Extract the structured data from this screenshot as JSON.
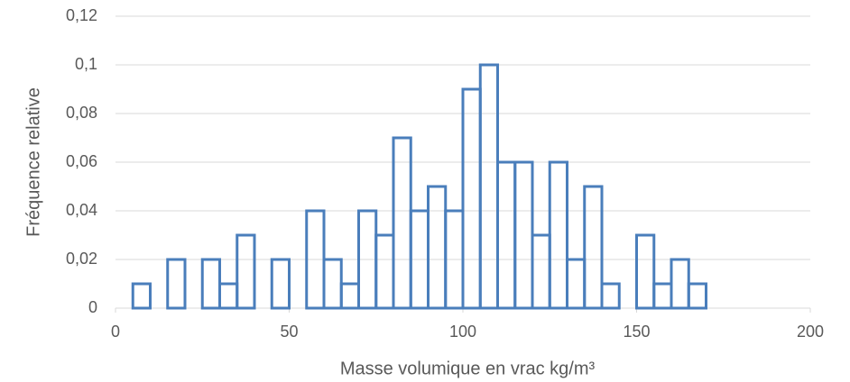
{
  "chart_data": {
    "type": "histogram",
    "x_label": "Masse volumique en vrac kg/m³",
    "y_label": "Fréquence relative",
    "bins": [
      0,
      5,
      10,
      15,
      20,
      25,
      30,
      35,
      40,
      45,
      50,
      55,
      60,
      65,
      70,
      75,
      80,
      85,
      90,
      95,
      100,
      105,
      110,
      115,
      120,
      125,
      130,
      135,
      140,
      145,
      150,
      155,
      160,
      165,
      170
    ],
    "counts": [
      0,
      0.01,
      0,
      0.02,
      0,
      0.02,
      0.01,
      0.03,
      0,
      0.02,
      0,
      0.04,
      0.02,
      0.01,
      0.04,
      0.03,
      0.07,
      0.04,
      0.05,
      0.04,
      0.09,
      0.1,
      0.06,
      0.06,
      0.03,
      0.06,
      0.02,
      0.05,
      0.01,
      0,
      0.03,
      0.01,
      0.02,
      0.01
    ],
    "color": "#4a7ebb",
    "xlim": [
      0,
      200
    ],
    "xticks": [
      0,
      50,
      100,
      150,
      200
    ],
    "ylim": [
      0,
      0.12
    ],
    "yticks": [
      0,
      {
        "value": 0.02,
        "label": "0,02"
      },
      {
        "value": 0.04,
        "label": "0,04"
      },
      {
        "value": 0.06,
        "label": "0,06"
      },
      {
        "value": 0.08,
        "label": "0,08"
      },
      {
        "value": 0.1,
        "label": "0,1"
      },
      {
        "value": 0.12,
        "label": "0,12"
      }
    ],
    "grid": true
  }
}
